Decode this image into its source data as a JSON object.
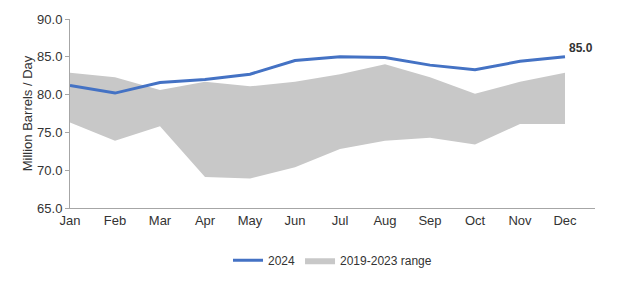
{
  "chart_data": {
    "type": "line",
    "y_label": "Million Barrels / Day",
    "categories": [
      "Jan",
      "Feb",
      "Mar",
      "Apr",
      "May",
      "Jun",
      "Jul",
      "Aug",
      "Sep",
      "Oct",
      "Nov",
      "Dec"
    ],
    "series": [
      {
        "name": "2019-2023 range",
        "type": "area",
        "color": "#c8c8c8",
        "low": [
          76.3,
          73.9,
          75.8,
          69.1,
          68.9,
          70.4,
          72.8,
          73.9,
          74.3,
          73.4,
          76.1,
          76.1
        ],
        "high": [
          82.9,
          82.3,
          80.6,
          81.7,
          81.1,
          81.7,
          82.7,
          84.0,
          82.3,
          80.1,
          81.7,
          82.9
        ]
      },
      {
        "name": "2024",
        "type": "line",
        "color": "#4472c4",
        "values": [
          81.2,
          80.2,
          81.6,
          82.0,
          82.7,
          84.5,
          85.0,
          84.9,
          83.9,
          83.3,
          84.4,
          85.0
        ]
      }
    ],
    "annotations": [
      {
        "text": "85.0",
        "x": "Dec",
        "y": 85.0
      }
    ],
    "ylim": [
      65,
      90
    ],
    "yticks": [
      {
        "value": 65,
        "label": "65.0"
      },
      {
        "value": 70,
        "label": "70.0"
      },
      {
        "value": 75,
        "label": "75.0"
      },
      {
        "value": 80,
        "label": "80.0"
      },
      {
        "value": 85,
        "label": "85.0"
      },
      {
        "value": 90,
        "label": "90.0"
      }
    ],
    "grid": false,
    "legend": "bottom"
  }
}
